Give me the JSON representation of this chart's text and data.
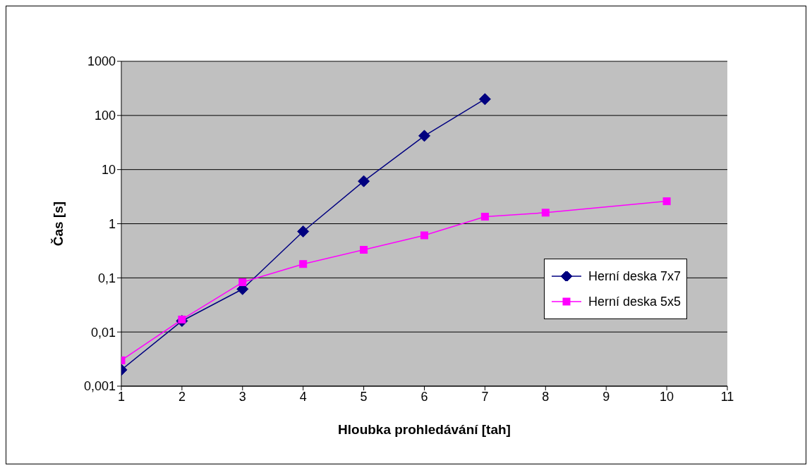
{
  "chart_data": {
    "type": "line",
    "xlabel": "Hloubka prohledávání [tah]",
    "ylabel": "Čas [s]",
    "xlim": [
      1,
      11
    ],
    "xticks": [
      1,
      2,
      3,
      4,
      5,
      6,
      7,
      8,
      9,
      10,
      11
    ],
    "ylim": [
      0.001,
      1000
    ],
    "yticks": [
      {
        "value": 0.001,
        "label": "0,001"
      },
      {
        "value": 0.01,
        "label": "0,01"
      },
      {
        "value": 0.1,
        "label": "0,1"
      },
      1,
      10,
      100,
      1000
    ],
    "log": "y",
    "grid": "y",
    "legend": "right",
    "series": [
      {
        "name": "Herní deska 7x7",
        "color": "#000080",
        "marker": "diamond",
        "x": [
          1,
          2,
          3,
          4,
          5,
          6,
          7
        ],
        "values": [
          0.002,
          0.016,
          0.062,
          0.72,
          6.1,
          42,
          200
        ]
      },
      {
        "name": "Herní deska 5x5",
        "color": "#ff00ff",
        "marker": "square",
        "x": [
          1,
          2,
          3,
          4,
          5,
          6,
          7,
          8,
          10
        ],
        "values": [
          0.003,
          0.017,
          0.083,
          0.18,
          0.33,
          0.61,
          1.35,
          1.6,
          2.6
        ]
      }
    ]
  }
}
